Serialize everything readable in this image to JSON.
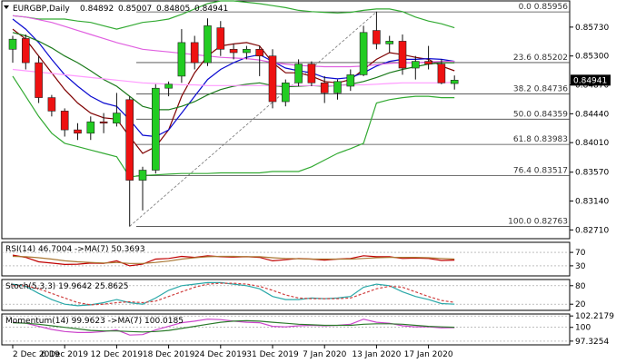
{
  "chart_data": [
    {
      "type": "candlestick",
      "header": {
        "symbol": "EURGBP,Daily",
        "ohlc": [
          "0.84892",
          "0.85007",
          "0.84805",
          "0.84941"
        ]
      },
      "price_label": "0.84941",
      "ylim": [
        0.8258,
        0.8612
      ],
      "y_ticks": [
        "0.85730",
        "0.85300",
        "0.84870",
        "0.84440",
        "0.84010",
        "0.83570",
        "0.83140",
        "0.82710"
      ],
      "x_ticks": [
        {
          "i": 0,
          "label": "2 Dec 2019"
        },
        {
          "i": 4,
          "label": "6 Dec 2019"
        },
        {
          "i": 8,
          "label": "12 Dec 2019"
        },
        {
          "i": 12,
          "label": "18 Dec 2019"
        },
        {
          "i": 16,
          "label": "24 Dec 2019"
        },
        {
          "i": 20,
          "label": "31 Dec 2019"
        },
        {
          "i": 24,
          "label": "7 Jan 2020"
        },
        {
          "i": 28,
          "label": "13 Jan 2020"
        },
        {
          "i": 32,
          "label": "17 Jan 2020"
        }
      ],
      "candles": [
        {
          "o": 0.854,
          "h": 0.856,
          "l": 0.852,
          "c": 0.8555
        },
        {
          "o": 0.8556,
          "h": 0.8562,
          "l": 0.851,
          "c": 0.852
        },
        {
          "o": 0.852,
          "h": 0.853,
          "l": 0.846,
          "c": 0.8468
        },
        {
          "o": 0.8468,
          "h": 0.8472,
          "l": 0.844,
          "c": 0.8448
        },
        {
          "o": 0.8448,
          "h": 0.8452,
          "l": 0.841,
          "c": 0.842
        },
        {
          "o": 0.842,
          "h": 0.843,
          "l": 0.8405,
          "c": 0.8415
        },
        {
          "o": 0.8415,
          "h": 0.844,
          "l": 0.8405,
          "c": 0.8432
        },
        {
          "o": 0.8432,
          "h": 0.8445,
          "l": 0.8415,
          "c": 0.843
        },
        {
          "o": 0.843,
          "h": 0.8475,
          "l": 0.8425,
          "c": 0.8445
        },
        {
          "o": 0.8465,
          "h": 0.847,
          "l": 0.8276,
          "c": 0.8345
        },
        {
          "o": 0.8345,
          "h": 0.8365,
          "l": 0.83,
          "c": 0.836
        },
        {
          "o": 0.836,
          "h": 0.8488,
          "l": 0.8355,
          "c": 0.8482
        },
        {
          "o": 0.8482,
          "h": 0.8492,
          "l": 0.847,
          "c": 0.8488
        },
        {
          "o": 0.85,
          "h": 0.857,
          "l": 0.849,
          "c": 0.855
        },
        {
          "o": 0.855,
          "h": 0.856,
          "l": 0.851,
          "c": 0.852
        },
        {
          "o": 0.852,
          "h": 0.8586,
          "l": 0.8515,
          "c": 0.8575
        },
        {
          "o": 0.8572,
          "h": 0.8582,
          "l": 0.853,
          "c": 0.854
        },
        {
          "o": 0.854,
          "h": 0.8548,
          "l": 0.8525,
          "c": 0.8535
        },
        {
          "o": 0.8535,
          "h": 0.8545,
          "l": 0.8525,
          "c": 0.854
        },
        {
          "o": 0.854,
          "h": 0.8545,
          "l": 0.85,
          "c": 0.853
        },
        {
          "o": 0.853,
          "h": 0.854,
          "l": 0.8452,
          "c": 0.8462
        },
        {
          "o": 0.8462,
          "h": 0.8495,
          "l": 0.8455,
          "c": 0.849
        },
        {
          "o": 0.849,
          "h": 0.8525,
          "l": 0.8485,
          "c": 0.8518
        },
        {
          "o": 0.8518,
          "h": 0.8522,
          "l": 0.8485,
          "c": 0.849
        },
        {
          "o": 0.849,
          "h": 0.85,
          "l": 0.846,
          "c": 0.8475
        },
        {
          "o": 0.8475,
          "h": 0.8495,
          "l": 0.8465,
          "c": 0.8492
        },
        {
          "o": 0.8485,
          "h": 0.851,
          "l": 0.8478,
          "c": 0.8502
        },
        {
          "o": 0.8502,
          "h": 0.8575,
          "l": 0.85,
          "c": 0.8565
        },
        {
          "o": 0.8568,
          "h": 0.8596,
          "l": 0.854,
          "c": 0.8548
        },
        {
          "o": 0.8548,
          "h": 0.856,
          "l": 0.8535,
          "c": 0.8552
        },
        {
          "o": 0.8552,
          "h": 0.8562,
          "l": 0.8502,
          "c": 0.8512
        },
        {
          "o": 0.8512,
          "h": 0.853,
          "l": 0.8495,
          "c": 0.8522
        },
        {
          "o": 0.8522,
          "h": 0.8545,
          "l": 0.851,
          "c": 0.8518
        },
        {
          "o": 0.8518,
          "h": 0.8525,
          "l": 0.8488,
          "c": 0.849
        },
        {
          "o": 0.8489,
          "h": 0.8501,
          "l": 0.848,
          "c": 0.8494
        }
      ],
      "moving_averages": [
        {
          "color": "#7f0000",
          "values": [
            0.857,
            0.8555,
            0.853,
            0.8505,
            0.848,
            0.846,
            0.8445,
            0.8438,
            0.8436,
            0.841,
            0.8385,
            0.8395,
            0.842,
            0.847,
            0.8505,
            0.853,
            0.8545,
            0.8548,
            0.855,
            0.8545,
            0.852,
            0.8505,
            0.8505,
            0.85,
            0.8492,
            0.849,
            0.8495,
            0.851,
            0.8525,
            0.8535,
            0.8532,
            0.8528,
            0.8525,
            0.8515,
            0.8508
          ]
        },
        {
          "color": "#0a0ad0",
          "values": [
            0.8585,
            0.857,
            0.855,
            0.8525,
            0.8502,
            0.8485,
            0.847,
            0.846,
            0.8455,
            0.8435,
            0.8412,
            0.841,
            0.842,
            0.8445,
            0.847,
            0.8495,
            0.851,
            0.852,
            0.8528,
            0.8532,
            0.8522,
            0.8512,
            0.8508,
            0.8505,
            0.8498,
            0.8496,
            0.8498,
            0.8505,
            0.8515,
            0.8522,
            0.8525,
            0.8525,
            0.8526,
            0.8525,
            0.8522
          ]
        },
        {
          "color": "#1b7a1b",
          "values": [
            0.8565,
            0.856,
            0.8552,
            0.8542,
            0.853,
            0.852,
            0.8508,
            0.8495,
            0.8485,
            0.847,
            0.8455,
            0.845,
            0.845,
            0.8455,
            0.8462,
            0.8472,
            0.848,
            0.8485,
            0.8488,
            0.849,
            0.8486,
            0.8484,
            0.8485,
            0.8486,
            0.8485,
            0.8486,
            0.8488,
            0.8492,
            0.8498,
            0.8505,
            0.851,
            0.8514,
            0.8518,
            0.852,
            0.852
          ]
        },
        {
          "color": "#e060e0",
          "values": [
            0.859,
            0.8588,
            0.8584,
            0.858,
            0.8574,
            0.8568,
            0.8562,
            0.8556,
            0.855,
            0.8545,
            0.854,
            0.8538,
            0.8536,
            0.8534,
            0.8532,
            0.853,
            0.8528,
            0.8527,
            0.8526,
            0.8524,
            0.852,
            0.8518,
            0.8516,
            0.8515,
            0.8514,
            0.8514,
            0.8514,
            0.8515,
            0.8517,
            0.8519,
            0.852,
            0.852,
            0.8521,
            0.8522,
            0.8522
          ]
        },
        {
          "color": "#ff99ff",
          "values": [
            0.851,
            0.8508,
            0.8506,
            0.8504,
            0.8502,
            0.85,
            0.8498,
            0.8496,
            0.8494,
            0.8492,
            0.849,
            0.8489,
            0.8488,
            0.8487,
            0.8487,
            0.8486,
            0.8486,
            0.8486,
            0.8486,
            0.8486,
            0.8486,
            0.8486,
            0.8486,
            0.8486,
            0.8486,
            0.8486,
            0.8487,
            0.8487,
            0.8488,
            0.8489,
            0.849,
            0.849,
            0.849,
            0.849,
            0.8491
          ]
        }
      ],
      "bands": {
        "color": "#33aa33",
        "upper": [
          0.859,
          0.8588,
          0.8585,
          0.8585,
          0.8585,
          0.8582,
          0.858,
          0.8575,
          0.857,
          0.8575,
          0.858,
          0.8582,
          0.8585,
          0.8592,
          0.86,
          0.8608,
          0.8612,
          0.8612,
          0.861,
          0.8608,
          0.8605,
          0.8602,
          0.8598,
          0.8596,
          0.8595,
          0.8594,
          0.8595,
          0.8598,
          0.86,
          0.86,
          0.8596,
          0.8588,
          0.8582,
          0.8578,
          0.8572
        ],
        "lower": [
          0.85,
          0.847,
          0.844,
          0.8415,
          0.84,
          0.8395,
          0.839,
          0.8385,
          0.838,
          0.835,
          0.8352,
          0.8353,
          0.8354,
          0.8355,
          0.8355,
          0.8355,
          0.8356,
          0.8356,
          0.8356,
          0.8356,
          0.8358,
          0.8358,
          0.8358,
          0.8365,
          0.8375,
          0.8385,
          0.8392,
          0.84,
          0.846,
          0.8465,
          0.8468,
          0.847,
          0.847,
          0.8468,
          0.8468
        ]
      },
      "fibonacci": [
        {
          "label": "0.0 0.85956",
          "value": 0.85956
        },
        {
          "label": "23.6 0.85202",
          "value": 0.85202
        },
        {
          "label": "38.2 0.84736",
          "value": 0.84736
        },
        {
          "label": "50.0 0.84359",
          "value": 0.84359
        },
        {
          "label": "61.8 0.83983",
          "value": 0.83983
        },
        {
          "label": "76.4 0.83517",
          "value": 0.83517
        },
        {
          "label": "100.0 0.82763",
          "value": 0.82763
        }
      ]
    },
    {
      "type": "line",
      "label": "RSI(14) 46.7004 ->MA(7) 50.3693",
      "ylim": [
        0,
        100
      ],
      "ticks": [
        {
          "v": 70,
          "label": "70"
        },
        {
          "v": 30,
          "label": "30"
        }
      ],
      "series": [
        {
          "color": "#c00000",
          "values": [
            62,
            55,
            42,
            38,
            34,
            35,
            38,
            37,
            45,
            30,
            35,
            50,
            52,
            58,
            55,
            60,
            57,
            56,
            57,
            55,
            45,
            48,
            52,
            50,
            47,
            50,
            52,
            60,
            57,
            57,
            52,
            53,
            52,
            46,
            47
          ]
        },
        {
          "color": "#aa7733",
          "values": [
            58,
            57,
            54,
            50,
            45,
            42,
            40,
            38,
            40,
            37,
            37,
            40,
            44,
            50,
            54,
            57,
            58,
            58,
            57,
            57,
            54,
            52,
            51,
            50,
            50,
            50,
            50,
            52,
            54,
            55,
            55,
            55,
            54,
            52,
            50
          ]
        }
      ]
    },
    {
      "type": "line",
      "label": "Stoch(5,3,3) 19.9642 25.8625",
      "ylim": [
        0,
        100
      ],
      "ticks": [
        {
          "v": 80,
          "label": "80"
        },
        {
          "v": 20,
          "label": "20"
        }
      ],
      "series": [
        {
          "color": "#2aa8a8",
          "values": [
            85,
            78,
            55,
            35,
            20,
            15,
            18,
            25,
            35,
            25,
            20,
            40,
            65,
            80,
            85,
            90,
            90,
            85,
            80,
            70,
            45,
            35,
            35,
            40,
            38,
            40,
            45,
            75,
            85,
            80,
            60,
            45,
            35,
            22,
            20
          ]
        },
        {
          "color": "#d04040",
          "values": [
            80,
            80,
            70,
            55,
            40,
            25,
            18,
            20,
            25,
            28,
            25,
            30,
            45,
            60,
            75,
            85,
            88,
            88,
            85,
            78,
            65,
            50,
            40,
            38,
            38,
            38,
            40,
            55,
            70,
            78,
            75,
            60,
            45,
            32,
            26
          ]
        }
      ]
    },
    {
      "type": "line",
      "label": "Momentum(14) 99.9623 ->MA(7) 100.0185",
      "ylim": [
        96.6,
        102.6
      ],
      "ticks": [
        {
          "v": 102.2179,
          "label": "102.2179"
        },
        {
          "v": 100,
          "label": "100"
        },
        {
          "v": 97.3254,
          "label": "97.3254"
        }
      ],
      "series": [
        {
          "color": "#cc44cc",
          "values": [
            101.0,
            100.8,
            100.2,
            99.6,
            99.2,
            99.0,
            99.0,
            99.2,
            99.5,
            98.5,
            98.6,
            99.5,
            100.2,
            100.9,
            101.2,
            101.6,
            101.5,
            101.2,
            101.0,
            100.9,
            100.2,
            100.1,
            100.3,
            100.4,
            100.3,
            100.4,
            100.6,
            101.6,
            101.0,
            100.8,
            100.3,
            100.1,
            100.1,
            99.9,
            99.96
          ]
        },
        {
          "color": "#2a7a2a",
          "values": [
            100.9,
            100.8,
            100.6,
            100.3,
            100.0,
            99.7,
            99.4,
            99.3,
            99.3,
            99.2,
            99.1,
            99.2,
            99.4,
            99.8,
            100.2,
            100.6,
            101.0,
            101.2,
            101.3,
            101.2,
            101.0,
            100.8,
            100.6,
            100.5,
            100.4,
            100.4,
            100.4,
            100.6,
            100.7,
            100.7,
            100.6,
            100.4,
            100.2,
            100.1,
            100.02
          ]
        }
      ]
    }
  ]
}
